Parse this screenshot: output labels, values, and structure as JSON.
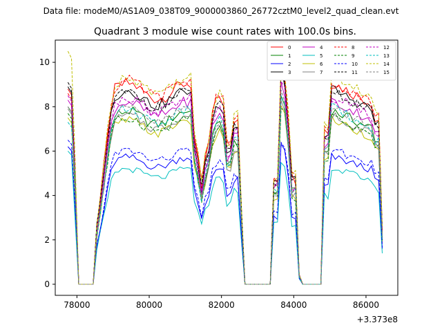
{
  "suptitle": "Data file: modeM0/AS1A09_038T09_9000003860_26772cztM0_level2_quad_clean.evt",
  "chart_data": {
    "type": "line",
    "title": "Quadrant 3 module wise count rates with 100.0s bins.",
    "xlabel": "",
    "ylabel": "",
    "x_offset_label": "+3.373e8",
    "xlim": [
      77400,
      86880
    ],
    "ylim": [
      -0.5,
      11.0
    ],
    "xticks": [
      78000,
      80000,
      82000,
      84000,
      86000
    ],
    "xtick_labels": [
      "78000",
      "80000",
      "82000",
      "84000",
      "86000"
    ],
    "yticks": [
      0,
      2,
      4,
      6,
      8,
      10
    ],
    "ytick_labels": [
      "0",
      "2",
      "4",
      "6",
      "8",
      "10"
    ],
    "grid": false,
    "legend_position": "top-right",
    "legend_columns": 4,
    "series": [
      {
        "name": "0",
        "color": "#ff0000",
        "dash": "solid",
        "level": 8.7,
        "start": 8.8
      },
      {
        "name": "1",
        "color": "#008000",
        "dash": "solid",
        "level": 7.5,
        "start": 8.0
      },
      {
        "name": "2",
        "color": "#0000ff",
        "dash": "solid",
        "level": 5.5,
        "start": 6.2
      },
      {
        "name": "3",
        "color": "#000000",
        "dash": "solid",
        "level": 8.4,
        "start": 8.9
      },
      {
        "name": "4",
        "color": "#bf00bf",
        "dash": "solid",
        "level": 7.9,
        "start": 8.3
      },
      {
        "name": "5",
        "color": "#00bfbf",
        "dash": "solid",
        "level": 5.0,
        "start": 6.0
      },
      {
        "name": "6",
        "color": "#bfbf00",
        "dash": "solid",
        "level": 7.1,
        "start": 7.5
      },
      {
        "name": "7",
        "color": "#808080",
        "dash": "solid",
        "level": 7.3,
        "start": 7.9
      },
      {
        "name": "8",
        "color": "#ff0000",
        "dash": "dashed",
        "level": 8.8,
        "start": 8.6
      },
      {
        "name": "9",
        "color": "#008000",
        "dash": "dashed",
        "level": 7.2,
        "start": 7.7
      },
      {
        "name": "10",
        "color": "#0000ff",
        "dash": "dashed",
        "level": 5.8,
        "start": 6.5
      },
      {
        "name": "11",
        "color": "#000000",
        "dash": "dashed",
        "level": 8.3,
        "start": 9.1
      },
      {
        "name": "12",
        "color": "#bf00bf",
        "dash": "dashed",
        "level": 8.1,
        "start": 8.5
      },
      {
        "name": "13",
        "color": "#00bfbf",
        "dash": "dashed",
        "level": 7.6,
        "start": 7.3
      },
      {
        "name": "14",
        "color": "#bfbf00",
        "dash": "dashed",
        "level": 9.0,
        "start": 10.5
      },
      {
        "name": "15",
        "color": "#808080",
        "dash": "dashed",
        "level": 7.6,
        "start": 8.0
      }
    ]
  }
}
